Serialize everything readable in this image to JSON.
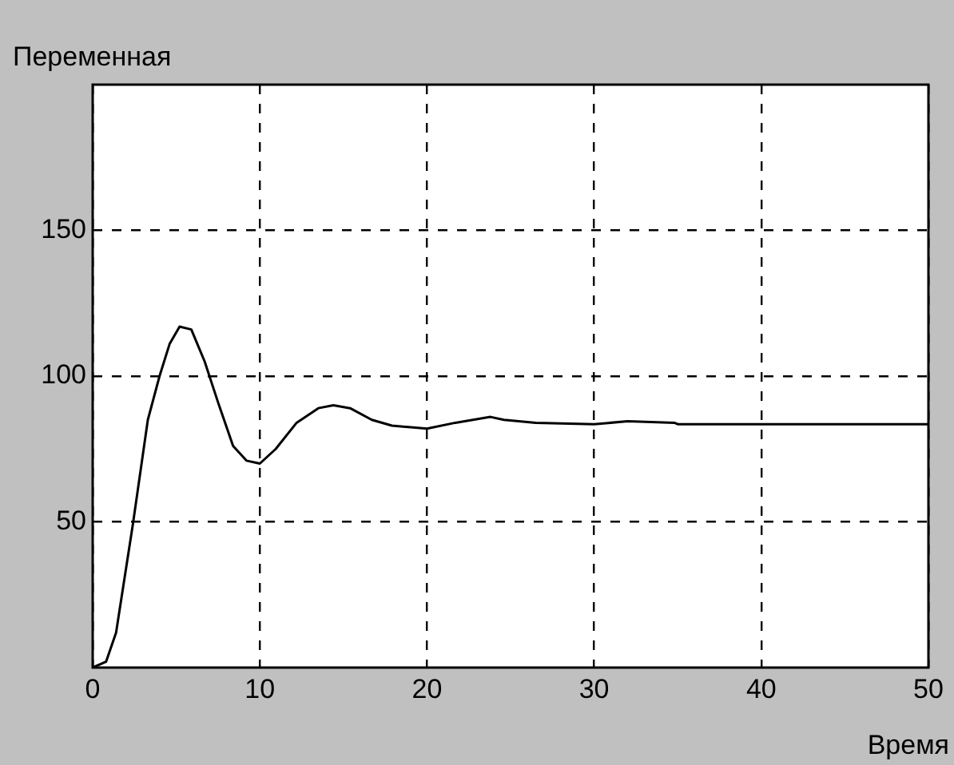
{
  "chart_data": {
    "type": "line",
    "ylabel": "Переменная",
    "xlabel": "Время",
    "series": [
      {
        "color": "#000000",
        "x": [
          0,
          0.8,
          1.4,
          2.4,
          3.3,
          4.0,
          4.6,
          5.2,
          5.9,
          6.7,
          7.5,
          8.4,
          9.2,
          10,
          10.95,
          12.2,
          13.5,
          14.4,
          15.4,
          16.7,
          17.9,
          20,
          21.7,
          23.8,
          24.6,
          26.5,
          30,
          32,
          34.8,
          35,
          50
        ],
        "values": [
          0,
          2,
          12,
          49,
          85,
          100,
          111,
          117,
          116,
          105,
          91,
          76,
          71,
          70,
          75,
          84,
          89,
          90,
          89,
          85,
          83,
          82,
          84,
          86,
          85,
          84,
          83.5,
          84.5,
          84,
          83.5,
          83.5
        ]
      }
    ],
    "xlim": [
      0,
      50
    ],
    "xticks": [
      0,
      10,
      20,
      30,
      40,
      50
    ],
    "ylim": [
      0,
      200
    ],
    "yticks": [
      50,
      100,
      150
    ],
    "grid": true,
    "legend": false,
    "marker": "none",
    "line_style": "solid"
  }
}
